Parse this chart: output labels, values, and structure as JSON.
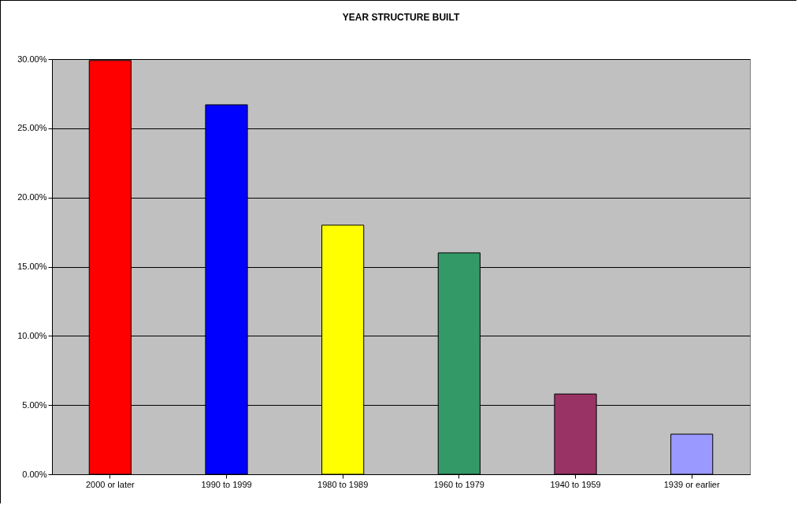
{
  "chart_data": {
    "type": "bar",
    "title": "YEAR STRUCTURE BUILT",
    "categories": [
      "2000 or later",
      "1990 to 1999",
      "1980 to 1989",
      "1960 to 1979",
      "1940 to 1959",
      "1939 or earlier"
    ],
    "values": [
      29.9,
      26.7,
      18.0,
      16.0,
      5.8,
      2.9
    ],
    "colors": [
      "#ff0000",
      "#0000ff",
      "#ffff00",
      "#339966",
      "#993366",
      "#9999ff"
    ],
    "ylim": [
      0,
      30
    ],
    "yticks": [
      {
        "value": 0,
        "label": "0.00%"
      },
      {
        "value": 5,
        "label": "5.00%"
      },
      {
        "value": 10,
        "label": "10.00%"
      },
      {
        "value": 15,
        "label": "15.00%"
      },
      {
        "value": 20,
        "label": "20.00%"
      },
      {
        "value": 25,
        "label": "25.00%"
      },
      {
        "value": 30,
        "label": "30.00%"
      }
    ],
    "grid": "y"
  }
}
